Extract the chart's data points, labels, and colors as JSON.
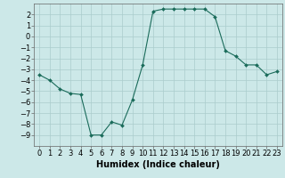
{
  "x": [
    0,
    1,
    2,
    3,
    4,
    5,
    6,
    7,
    8,
    9,
    10,
    11,
    12,
    13,
    14,
    15,
    16,
    17,
    18,
    19,
    20,
    21,
    22,
    23
  ],
  "y": [
    -3.5,
    -4.0,
    -4.8,
    -5.2,
    -5.3,
    -9.0,
    -9.0,
    -7.8,
    -8.1,
    -5.8,
    -2.6,
    2.3,
    2.5,
    2.5,
    2.5,
    2.5,
    2.5,
    1.8,
    -1.3,
    -1.8,
    -2.6,
    -2.6,
    -3.5,
    -3.2
  ],
  "xlabel": "Humidex (Indice chaleur)",
  "line_color": "#1a6b5a",
  "marker_color": "#1a6b5a",
  "bg_color": "#cce8e8",
  "grid_color": "#aacccc",
  "spine_color": "#666666",
  "ylim": [
    -10,
    3
  ],
  "xlim": [
    -0.5,
    23.5
  ],
  "yticks": [
    2,
    1,
    0,
    -1,
    -2,
    -3,
    -4,
    -5,
    -6,
    -7,
    -8,
    -9
  ],
  "xticks": [
    0,
    1,
    2,
    3,
    4,
    5,
    6,
    7,
    8,
    9,
    10,
    11,
    12,
    13,
    14,
    15,
    16,
    17,
    18,
    19,
    20,
    21,
    22,
    23
  ],
  "xlabel_fontsize": 7,
  "tick_fontsize": 6
}
